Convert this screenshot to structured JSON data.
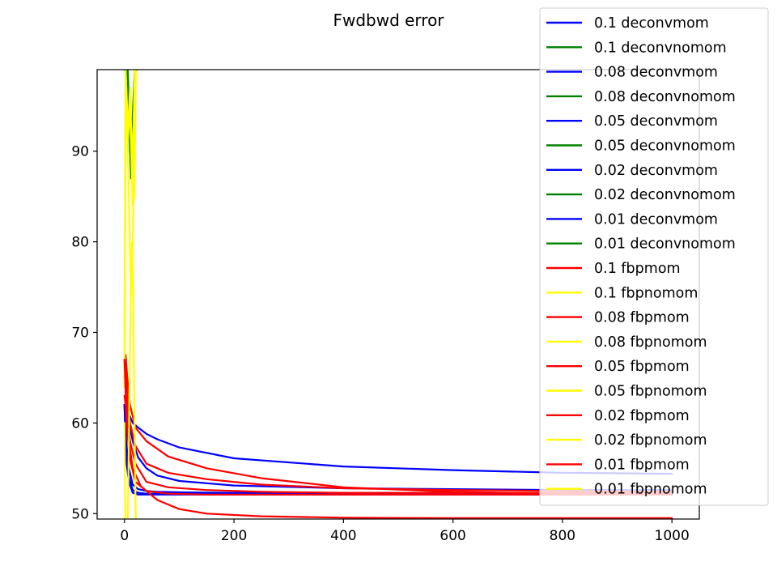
{
  "chart_data": {
    "type": "line",
    "title": "Fwdbwd error",
    "xlabel": "",
    "ylabel": "",
    "xlim": [
      -50,
      1050
    ],
    "ylim": [
      49.4,
      99
    ],
    "xticks": [
      0,
      200,
      400,
      600,
      800,
      1000
    ],
    "yticks": [
      50,
      60,
      70,
      80,
      90
    ],
    "grid": false,
    "legend_position": "top-right",
    "colors": {
      "blue": "#0000ff",
      "green": "#008000",
      "red": "#ff0000",
      "yellow": "#ffff00"
    },
    "series": [
      {
        "name": "0.1 deconvmom",
        "color": "#0000ff",
        "x": [
          0,
          3,
          8,
          15,
          25,
          40,
          60,
          100,
          200,
          400,
          600,
          800,
          1000
        ],
        "y": [
          62,
          62,
          61,
          60,
          59.5,
          58.8,
          58.2,
          57.3,
          56.1,
          55.2,
          54.8,
          54.5,
          54.4
        ]
      },
      {
        "name": "0.1 deconvnomom",
        "color": "#008000",
        "x": [
          0,
          3,
          6,
          9,
          12,
          15,
          18,
          21,
          23,
          25
        ],
        "y": [
          99,
          104,
          99,
          93,
          87,
          90,
          96,
          103,
          99,
          110
        ]
      },
      {
        "name": "0.08 deconvmom",
        "color": "#0000ff",
        "x": [
          0,
          3,
          8,
          15,
          25,
          40,
          60,
          100,
          200,
          400,
          600,
          800,
          1000
        ],
        "y": [
          62,
          61,
          60,
          58,
          56.2,
          55,
          54.2,
          53.6,
          53.1,
          52.8,
          52.7,
          52.6,
          52.6
        ]
      },
      {
        "name": "0.08 deconvnomom",
        "color": "#008000",
        "x": [
          0,
          3,
          6,
          9,
          12,
          15,
          18,
          21,
          23,
          25
        ],
        "y": [
          99,
          103,
          98,
          92,
          88,
          91,
          97,
          102,
          99,
          110
        ]
      },
      {
        "name": "0.05 deconvmom",
        "color": "#0000ff",
        "x": [
          0,
          3,
          8,
          15,
          25,
          40,
          60,
          100,
          200,
          400,
          600,
          800,
          1000
        ],
        "y": [
          62,
          58,
          55,
          53.2,
          52.7,
          52.5,
          52.4,
          52.35,
          52.3,
          52.3,
          52.3,
          52.3,
          52.3
        ]
      },
      {
        "name": "0.05 deconvnomom",
        "color": "#008000",
        "x": [
          0,
          3,
          6,
          9,
          12,
          15,
          18,
          21,
          23,
          25
        ],
        "y": [
          99,
          102,
          97,
          93,
          89,
          92,
          97,
          101,
          99,
          110
        ]
      },
      {
        "name": "0.02 deconvmom",
        "color": "#0000ff",
        "x": [
          0,
          3,
          8,
          15,
          25,
          40,
          60,
          100,
          200,
          400,
          600,
          800,
          1000
        ],
        "y": [
          62,
          57,
          54,
          52.6,
          52.3,
          52.2,
          52.2,
          52.2,
          52.2,
          52.2,
          52.2,
          52.2,
          52.2
        ]
      },
      {
        "name": "0.02 deconvnomom",
        "color": "#008000",
        "x": [
          0,
          3,
          6,
          9,
          12,
          15,
          18,
          21,
          23,
          25
        ],
        "y": [
          99,
          101,
          96,
          93,
          90,
          93,
          98,
          101,
          99,
          110
        ]
      },
      {
        "name": "0.01 deconvmom",
        "color": "#0000ff",
        "x": [
          0,
          3,
          8,
          15,
          25,
          40,
          60,
          100,
          200,
          400,
          600,
          800,
          1000
        ],
        "y": [
          62,
          56,
          53.5,
          52.3,
          52.1,
          52.1,
          52.1,
          52.1,
          52.1,
          52.1,
          52.1,
          52.1,
          52.1
        ]
      },
      {
        "name": "0.01 deconvnomom",
        "color": "#008000",
        "x": [
          0,
          3,
          6,
          9,
          12,
          15,
          18,
          21,
          23,
          25
        ],
        "y": [
          99,
          100,
          96,
          93,
          91,
          94,
          98,
          100,
          99,
          110
        ]
      },
      {
        "name": "0.1 fbpmom",
        "color": "#ff0000",
        "x": [
          0,
          2,
          5,
          10,
          20,
          40,
          80,
          150,
          250,
          400,
          600,
          800,
          1000
        ],
        "y": [
          66,
          67.5,
          65,
          62,
          59.5,
          58,
          56.3,
          55,
          53.9,
          52.9,
          52.4,
          52.2,
          52.1
        ]
      },
      {
        "name": "0.1 fbpnomom",
        "color": "#ffff00",
        "x": [
          0,
          2,
          4,
          6,
          8,
          10,
          12,
          15,
          18,
          21,
          23
        ],
        "y": [
          70,
          99,
          95,
          92,
          94,
          97,
          93,
          88,
          97,
          104,
          110
        ]
      },
      {
        "name": "0.08 fbpmom",
        "color": "#ff0000",
        "x": [
          0,
          2,
          5,
          10,
          20,
          40,
          80,
          150,
          250,
          400,
          600,
          800,
          1000
        ],
        "y": [
          65,
          66,
          63,
          60,
          57.5,
          55.5,
          54.5,
          53.8,
          53.2,
          52.8,
          52.6,
          52.5,
          52.4
        ]
      },
      {
        "name": "0.08 fbpnomom",
        "color": "#ffff00",
        "x": [
          0,
          2,
          4,
          6,
          8,
          10,
          12,
          15,
          18,
          21,
          23
        ],
        "y": [
          68,
          99,
          96,
          93,
          94,
          96,
          92,
          89,
          96,
          103,
          110
        ]
      },
      {
        "name": "0.05 fbpmom",
        "color": "#ff0000",
        "x": [
          0,
          2,
          5,
          10,
          20,
          40,
          80,
          150,
          250,
          400,
          600,
          800,
          1000
        ],
        "y": [
          64,
          64,
          61,
          58,
          55.5,
          53.5,
          52.9,
          52.6,
          52.4,
          52.3,
          52.3,
          52.3,
          52.3
        ]
      },
      {
        "name": "0.05 fbpnomom",
        "color": "#ffff00",
        "x": [
          0,
          2,
          4,
          6,
          8,
          10,
          12,
          15,
          18,
          21,
          23
        ],
        "y": [
          66,
          98,
          95,
          91,
          93,
          95,
          91,
          84,
          85,
          100,
          110
        ]
      },
      {
        "name": "0.02 fbpmom",
        "color": "#ff0000",
        "x": [
          0,
          2,
          5,
          10,
          20,
          40,
          80,
          150,
          250,
          400,
          600,
          800,
          1000
        ],
        "y": [
          63,
          62,
          59,
          56,
          53.5,
          52.5,
          52.2,
          52.1,
          52.1,
          52.1,
          52.1,
          52.1,
          52.1
        ]
      },
      {
        "name": "0.02 fbpnomom",
        "color": "#ffff00",
        "x": [
          0,
          2,
          4,
          6,
          8,
          10,
          12,
          15,
          18,
          21,
          23
        ],
        "y": [
          64,
          97,
          94,
          90,
          85,
          79,
          74,
          80,
          90,
          100,
          110
        ]
      },
      {
        "name": "0.01 fbpmom",
        "color": "#ff0000",
        "x": [
          0,
          3,
          8,
          15,
          30,
          60,
          100,
          150,
          250,
          400,
          600,
          800,
          1000
        ],
        "y": [
          67,
          62,
          58,
          55,
          53,
          51.5,
          50.5,
          50,
          49.7,
          49.55,
          49.5,
          49.5,
          49.5
        ]
      },
      {
        "name": "0.01 fbpnomom",
        "color": "#ffff00",
        "x": [
          0,
          2,
          4,
          6,
          8,
          10,
          12,
          14,
          16,
          18,
          20,
          22
        ],
        "y": [
          60,
          45,
          40,
          49,
          58,
          68,
          76,
          80,
          74,
          62,
          52,
          45
        ]
      }
    ]
  }
}
